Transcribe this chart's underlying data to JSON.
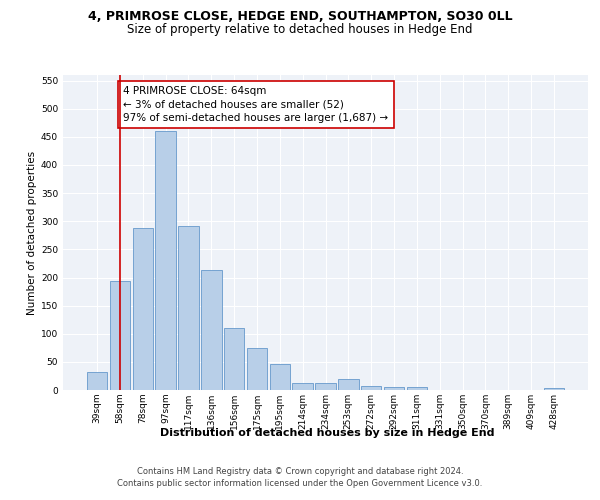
{
  "title1": "4, PRIMROSE CLOSE, HEDGE END, SOUTHAMPTON, SO30 0LL",
  "title2": "Size of property relative to detached houses in Hedge End",
  "xlabel": "Distribution of detached houses by size in Hedge End",
  "ylabel": "Number of detached properties",
  "categories": [
    "39sqm",
    "58sqm",
    "78sqm",
    "97sqm",
    "117sqm",
    "136sqm",
    "156sqm",
    "175sqm",
    "195sqm",
    "214sqm",
    "234sqm",
    "253sqm",
    "272sqm",
    "292sqm",
    "311sqm",
    "331sqm",
    "350sqm",
    "370sqm",
    "389sqm",
    "409sqm",
    "428sqm"
  ],
  "values": [
    32,
    193,
    288,
    460,
    292,
    213,
    110,
    74,
    47,
    13,
    12,
    20,
    7,
    5,
    5,
    0,
    0,
    0,
    0,
    0,
    3
  ],
  "bar_color": "#b8cfe8",
  "bar_edge_color": "#6699cc",
  "vline_x": 1,
  "vline_color": "#cc0000",
  "annotation_text": "4 PRIMROSE CLOSE: 64sqm\n← 3% of detached houses are smaller (52)\n97% of semi-detached houses are larger (1,687) →",
  "annotation_box_color": "#ffffff",
  "annotation_box_edge": "#cc0000",
  "ylim": [
    0,
    560
  ],
  "yticks": [
    0,
    50,
    100,
    150,
    200,
    250,
    300,
    350,
    400,
    450,
    500,
    550
  ],
  "footer1": "Contains HM Land Registry data © Crown copyright and database right 2024.",
  "footer2": "Contains public sector information licensed under the Open Government Licence v3.0.",
  "plot_bg_color": "#eef2f8",
  "title1_fontsize": 9,
  "title2_fontsize": 8.5,
  "xlabel_fontsize": 8,
  "ylabel_fontsize": 7.5,
  "tick_fontsize": 6.5,
  "annotation_fontsize": 7.5,
  "footer_fontsize": 6
}
